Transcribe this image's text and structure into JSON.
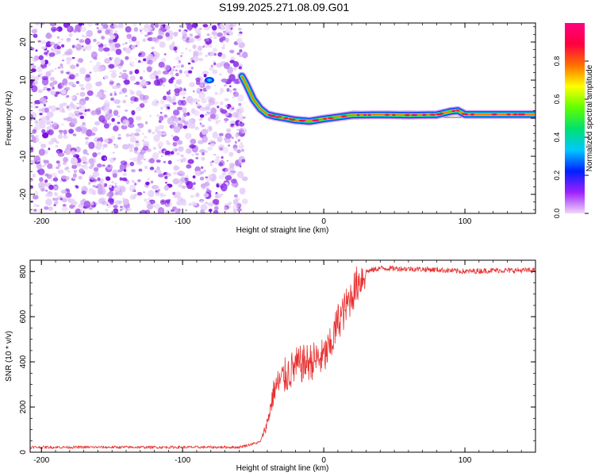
{
  "title": "S199.2025.271.08.09.G01",
  "chart_data": [
    {
      "type": "heatmap",
      "xlabel": "Height of straight line (km)",
      "ylabel": "Frequency (Hz)",
      "xlim": [
        -208,
        150
      ],
      "ylim": [
        -25,
        25
      ],
      "xticks": [
        -200,
        -100,
        0,
        100
      ],
      "yticks": [
        -20,
        -10,
        0,
        10,
        20
      ],
      "noise_region_x": [
        -208,
        -58
      ],
      "trace": {
        "x": [
          -58,
          -55,
          -50,
          -45,
          -40,
          -35,
          -30,
          -20,
          -10,
          0,
          10,
          20,
          40,
          60,
          80,
          90,
          95,
          100,
          150
        ],
        "freq_hz": [
          11,
          9,
          5,
          2.5,
          1.0,
          0.5,
          0.2,
          -0.5,
          -0.8,
          -0.2,
          0.3,
          0.8,
          0.9,
          0.8,
          0.9,
          1.8,
          2.0,
          1.0,
          1.0
        ]
      },
      "colorbar": {
        "label": "Normalized spectral amplitude",
        "ticks": [
          "0.0",
          "0.2",
          "0.4",
          "0.6",
          "0.8"
        ],
        "range": [
          0,
          1
        ],
        "colors": [
          "#f0d8f8",
          "#9d20ff",
          "#0020ff",
          "#00c8ff",
          "#00e070",
          "#60ff00",
          "#ffff00",
          "#ff7000",
          "#ff0040",
          "#ff0080"
        ]
      }
    },
    {
      "type": "line",
      "xlabel": "Height of straight line (km)",
      "ylabel": "SNR (10 * v/v)",
      "xlim": [
        -208,
        150
      ],
      "ylim": [
        0,
        850
      ],
      "xticks": [
        -200,
        -100,
        0,
        100
      ],
      "yticks": [
        0,
        200,
        400,
        600,
        800
      ],
      "line_color": "#e83030",
      "series_anchors": {
        "x": [
          -208,
          -60,
          -45,
          -40,
          -35,
          -30,
          -20,
          -10,
          0,
          5,
          10,
          15,
          20,
          25,
          30,
          40,
          60,
          80,
          100,
          120,
          150
        ],
        "y": [
          22,
          22,
          45,
          130,
          280,
          320,
          380,
          400,
          420,
          470,
          580,
          630,
          700,
          760,
          800,
          815,
          812,
          808,
          800,
          805,
          805
        ]
      }
    }
  ]
}
